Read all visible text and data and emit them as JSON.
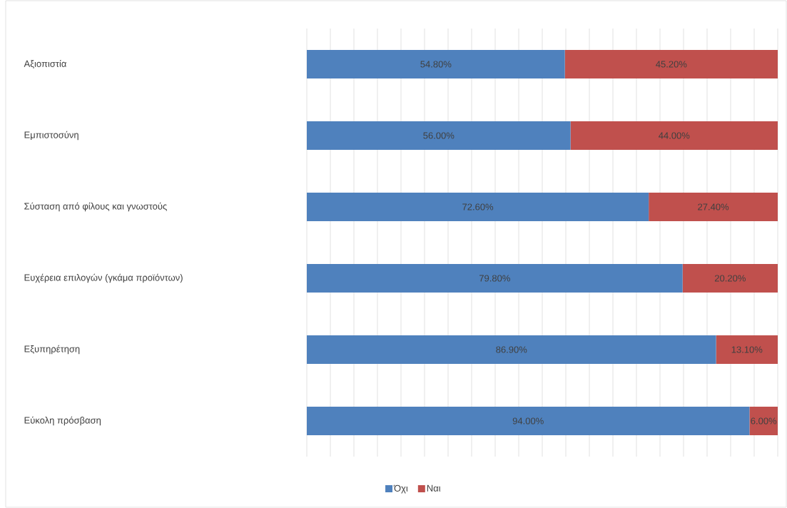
{
  "chart_data": {
    "type": "bar",
    "orientation": "horizontal",
    "stacked": true,
    "categories": [
      "Αξιοπιστία",
      "Εμπιστοσύνη",
      "Σύσταση από φίλους και γνωστούς",
      "Ευχέρεια επιλογών (γκάμα προϊόντων)",
      "Εξυπηρέτηση",
      "Εύκολη πρόσβαση"
    ],
    "series": [
      {
        "name": "Όχι",
        "color": "#4f81bd",
        "values": [
          54.8,
          56.0,
          72.6,
          79.8,
          86.9,
          94.0
        ],
        "value_labels": [
          "54.80%",
          "56.00%",
          "72.60%",
          "79.80%",
          "86.90%",
          "94.00%"
        ]
      },
      {
        "name": "Ναι",
        "color": "#c0504d",
        "values": [
          45.2,
          44.0,
          27.4,
          20.2,
          13.1,
          6.0
        ],
        "value_labels": [
          "45.20%",
          "44.00%",
          "27.40%",
          "20.20%",
          "13.10%",
          "6.00%"
        ]
      }
    ],
    "grid": "x",
    "legend": "bottom",
    "tick_labels": "y"
  }
}
